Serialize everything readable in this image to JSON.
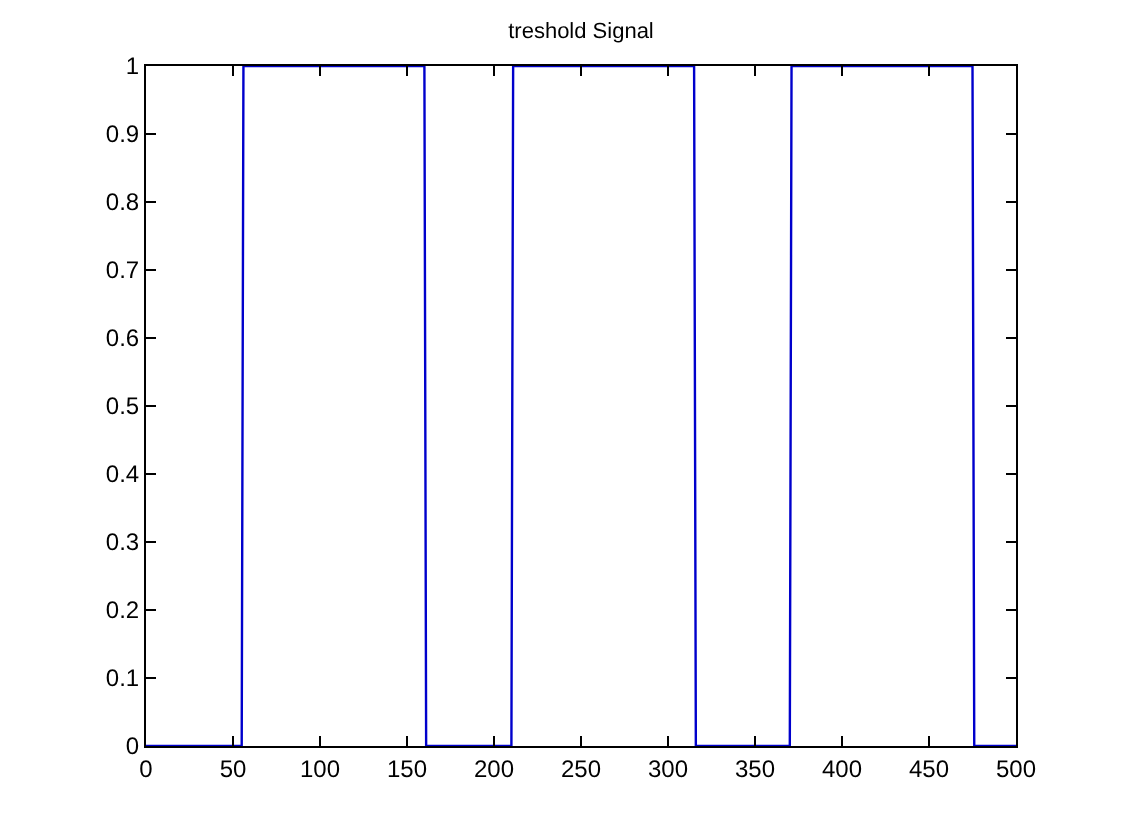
{
  "chart_data": {
    "type": "line",
    "title": "treshold Signal",
    "x": [
      0,
      55,
      56,
      160,
      161,
      210,
      211,
      315,
      316,
      370,
      371,
      475,
      476,
      500
    ],
    "series": [
      {
        "color": "#0000cc",
        "values": [
          0,
          0,
          1,
          1,
          0,
          0,
          1,
          1,
          0,
          0,
          1,
          1,
          0,
          0
        ]
      }
    ],
    "xlim": [
      0,
      500
    ],
    "xticks": [
      0,
      50,
      100,
      150,
      200,
      250,
      300,
      350,
      400,
      450,
      500
    ],
    "ylim": [
      0,
      1
    ],
    "yticks": [
      0,
      0.1,
      0.2,
      0.3,
      0.4,
      0.5,
      0.6,
      0.7,
      0.8,
      0.9,
      1
    ],
    "marker": "none",
    "line_style": "solid"
  }
}
